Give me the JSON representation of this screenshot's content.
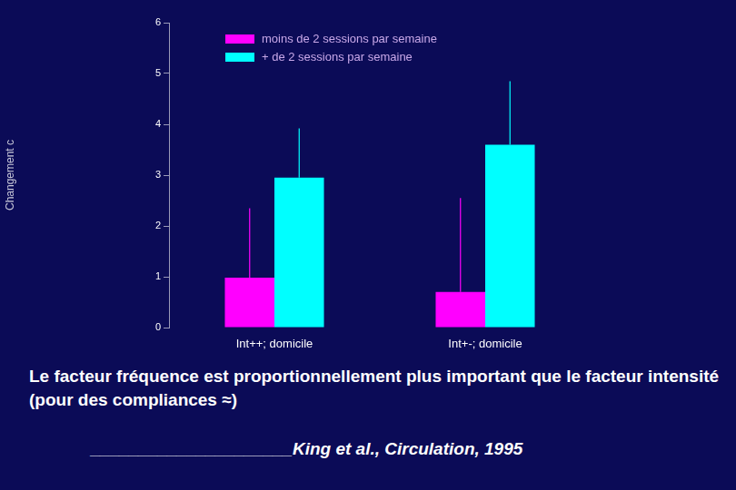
{
  "chart_data": {
    "type": "bar",
    "categories": [
      "Int++; domicile",
      "Int+-; domicile"
    ],
    "series": [
      {
        "name": "moins de 2 sessions par semaine",
        "color": "#ff00ff",
        "values": [
          0.98,
          0.7
        ],
        "errors": [
          1.37,
          1.85
        ]
      },
      {
        "name": "+ de 2 sessions par semaine",
        "color": "#00ffff",
        "values": [
          2.95,
          3.6
        ],
        "errors": [
          0.97,
          1.25
        ]
      }
    ],
    "ylabel": "Changement c",
    "ylim": [
      0,
      6
    ],
    "yticks": [
      0,
      1,
      2,
      3,
      4,
      5,
      6
    ],
    "grid": false,
    "legend": "upper left",
    "annotations": [
      "Le facteur fréquence est proportionnellement  plus important que le facteur intensité (pour des compliances ≈)",
      "_____________________King et al., Circulation, 1995"
    ]
  }
}
